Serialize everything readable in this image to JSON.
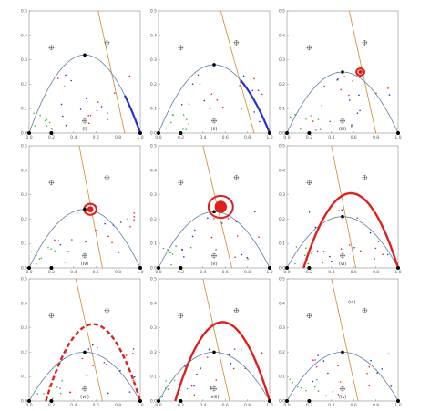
{
  "colors": {
    "parabola": "#5b7fa8",
    "line": "#d08c2a",
    "red": "#e02020",
    "blue": "#2233cc",
    "green": "#33bb33",
    "black": "#000000"
  },
  "chart_data": [
    {
      "type": "scatter",
      "panel": "i",
      "label": "(i)",
      "xlim": [
        0,
        1
      ],
      "ylim": [
        0,
        0.5
      ],
      "x_ticks": [
        "0.0",
        "0.2",
        "0.4",
        "0.6",
        "0.8",
        "1.0"
      ],
      "y_ticks": [
        "0.0",
        "0.1",
        "0.2",
        "0.3",
        "0.4",
        "0.5"
      ],
      "parabola_peak": 0.32,
      "line": [
        [
          0.62,
          0.5
        ],
        [
          0.86,
          0
        ]
      ],
      "highlight": {
        "kind": "arc",
        "from": 0.86,
        "to": 1.0,
        "color": "blue"
      },
      "extra_text": ""
    },
    {
      "type": "scatter",
      "panel": "ii",
      "label": "(ii)",
      "xlim": [
        0,
        1
      ],
      "ylim": [
        0,
        0.5
      ],
      "x_ticks": [
        "0.0",
        "0.2",
        "0.4",
        "0.6",
        "0.8",
        "1.0"
      ],
      "y_ticks": [
        "0.0",
        "0.1",
        "0.2",
        "0.3",
        "0.4",
        "0.5"
      ],
      "parabola_peak": 0.28,
      "line": [
        [
          0.56,
          0.5
        ],
        [
          0.86,
          0
        ]
      ],
      "highlight": {
        "kind": "arc",
        "from": 0.74,
        "to": 1.0,
        "color": "blue"
      },
      "extra_text": ""
    },
    {
      "type": "scatter",
      "panel": "iii",
      "label": "(iii)",
      "xlim": [
        0,
        1
      ],
      "ylim": [
        0,
        0.5
      ],
      "x_ticks": [
        "0.0",
        "0.2",
        "0.4",
        "0.6",
        "0.8",
        "1.0"
      ],
      "y_ticks": [
        "0.0",
        "0.1",
        "0.2",
        "0.3",
        "0.4",
        "0.5"
      ],
      "parabola_peak": 0.25,
      "line": [
        [
          0.56,
          0.5
        ],
        [
          0.8,
          0
        ]
      ],
      "highlight": {
        "kind": "ring",
        "cx": 0.66,
        "cy": 0.25,
        "r": 0.035
      },
      "extra_text": ""
    },
    {
      "type": "scatter",
      "panel": "iv",
      "label": "(iv)",
      "xlim": [
        0,
        1
      ],
      "ylim": [
        0,
        0.5
      ],
      "x_ticks": [
        "0.0",
        "0.2",
        "0.4",
        "0.6",
        "0.8",
        "1.0"
      ],
      "y_ticks": [
        "0.0",
        "0.1",
        "0.2",
        "0.3",
        "0.4",
        "0.5"
      ],
      "parabola_peak": 0.24,
      "line": [
        [
          0.45,
          0.5
        ],
        [
          0.66,
          0
        ]
      ],
      "highlight": {
        "kind": "ring",
        "cx": 0.55,
        "cy": 0.24,
        "r": 0.055
      },
      "extra_text": ""
    },
    {
      "type": "scatter",
      "panel": "v",
      "label": "(v)",
      "xlim": [
        0,
        1
      ],
      "ylim": [
        0,
        0.5
      ],
      "x_ticks": [
        "0.0",
        "0.2",
        "0.4",
        "0.6",
        "0.8",
        "1.0"
      ],
      "y_ticks": [
        "0.0",
        "0.1",
        "0.2",
        "0.3",
        "0.4",
        "0.5"
      ],
      "parabola_peak": 0.23,
      "line": [
        [
          0.4,
          0.5
        ],
        [
          0.66,
          0
        ]
      ],
      "highlight": {
        "kind": "loop",
        "cx": 0.56,
        "cy": 0.25,
        "r": 0.11
      },
      "extra_text": ""
    },
    {
      "type": "scatter",
      "panel": "vi",
      "label": "(vi)",
      "xlim": [
        0,
        1
      ],
      "ylim": [
        0,
        0.5
      ],
      "x_ticks": [
        "0.0",
        "0.2",
        "0.4",
        "0.6",
        "0.8",
        "1.0"
      ],
      "y_ticks": [
        "0.0",
        "0.1",
        "0.2",
        "0.3",
        "0.4",
        "0.5"
      ],
      "parabola_peak": 0.21,
      "line": [
        [
          0.4,
          0.5
        ],
        [
          0.62,
          0
        ]
      ],
      "highlight": {
        "kind": "big",
        "peak": 0.36,
        "dashed": false
      },
      "extra_text": ""
    },
    {
      "type": "scatter",
      "panel": "vii",
      "label": "(vii)",
      "xlim": [
        0,
        1
      ],
      "ylim": [
        0,
        0.5
      ],
      "x_ticks": [
        "0.0",
        "0.2",
        "0.4",
        "0.6",
        "0.8",
        "1.0"
      ],
      "y_ticks": [
        "0.0",
        "0.1",
        "0.2",
        "0.3",
        "0.4",
        "0.5"
      ],
      "parabola_peak": 0.2,
      "line": [
        [
          0.42,
          0.5
        ],
        [
          0.66,
          0
        ]
      ],
      "highlight": {
        "kind": "big",
        "peak": 0.37,
        "dashed": true
      },
      "extra_text": ""
    },
    {
      "type": "scatter",
      "panel": "viii",
      "label": "(viii)",
      "xlim": [
        0,
        1
      ],
      "ylim": [
        0,
        0.5
      ],
      "x_ticks": [
        "0.0",
        "0.2",
        "0.4",
        "0.6",
        "0.8",
        "1.0"
      ],
      "y_ticks": [
        "0.0",
        "0.1",
        "0.2",
        "0.3",
        "0.4",
        "0.5"
      ],
      "parabola_peak": 0.2,
      "line": [
        [
          0.4,
          0.5
        ],
        [
          0.64,
          0
        ]
      ],
      "highlight": {
        "kind": "big",
        "peak": 0.38,
        "dashed": false
      },
      "extra_text": ""
    },
    {
      "type": "scatter",
      "panel": "ix",
      "label": "(ix)",
      "xlim": [
        0,
        1
      ],
      "ylim": [
        0,
        0.5
      ],
      "x_ticks": [
        "0.0",
        "0.2",
        "0.4",
        "0.6",
        "0.8",
        "1.0"
      ],
      "y_ticks": [
        "0.0",
        "0.1",
        "0.2",
        "0.3",
        "0.4",
        "0.5"
      ],
      "parabola_peak": 0.2,
      "line": [
        [
          0.4,
          0.5
        ],
        [
          0.64,
          0
        ]
      ],
      "highlight": {
        "kind": "none"
      },
      "extra_text": "(vi)"
    }
  ]
}
